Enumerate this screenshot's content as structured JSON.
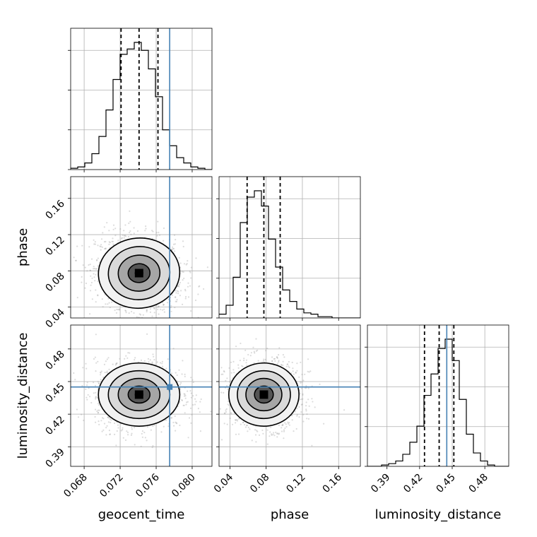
{
  "chart_data": {
    "type": "corner",
    "parameters": [
      "geocent_time",
      "phase",
      "luminosity_distance"
    ],
    "axis_labels": {
      "geocent_time": "geocent_time",
      "phase": "phase",
      "luminosity_distance": "luminosity_distance"
    },
    "ranges": {
      "geocent_time": [
        0.0665,
        0.0822
      ],
      "phase": [
        0.028,
        0.184
      ],
      "luminosity_distance": [
        0.372,
        0.502
      ]
    },
    "ticks": {
      "geocent_time": [
        "0.068",
        "0.072",
        "0.076",
        "0.080"
      ],
      "phase": [
        "0.04",
        "0.08",
        "0.12",
        "0.16"
      ],
      "luminosity_distance": [
        "0.39",
        "0.42",
        "0.45",
        "0.48"
      ]
    },
    "truths": {
      "geocent_time": 0.0775,
      "luminosity_distance": 0.445
    },
    "quantiles": {
      "geocent_time": [
        0.0721,
        0.0741,
        0.0762
      ],
      "phase": [
        0.059,
        0.0775,
        0.0955
      ],
      "luminosity_distance": [
        0.4245,
        0.438,
        0.4515
      ]
    },
    "histograms": {
      "geocent_time": {
        "bins": 20,
        "counts": [
          1,
          2,
          5,
          12,
          25,
          45,
          68,
          87,
          91,
          96,
          90,
          76,
          55,
          30,
          18,
          9,
          5,
          2,
          1,
          0
        ]
      },
      "phase": {
        "bins": 20,
        "counts": [
          3,
          10,
          32,
          75,
          95,
          100,
          88,
          62,
          40,
          22,
          13,
          7,
          4,
          3,
          1,
          1,
          0,
          0,
          0,
          0
        ]
      },
      "luminosity_distance": {
        "bins": 20,
        "counts": [
          0,
          0,
          1,
          2,
          4,
          9,
          18,
          30,
          53,
          69,
          88,
          95,
          79,
          50,
          24,
          10,
          4,
          1,
          0,
          0
        ]
      }
    },
    "posterior_means": {
      "geocent_time": 0.0741,
      "phase": 0.0775,
      "luminosity_distance": 0.438
    },
    "posterior_std": {
      "geocent_time": 0.0021,
      "phase": 0.018,
      "luminosity_distance": 0.0135
    },
    "correlations": {
      "geocent_time|phase": -0.15,
      "geocent_time|luminosity_distance": 0.0,
      "phase|luminosity_distance": 0.0
    },
    "grid": true,
    "colors": {
      "hist": "#000000",
      "quantile": "#000000",
      "truth": "#4682b4",
      "points": "#9a9a9a"
    }
  }
}
